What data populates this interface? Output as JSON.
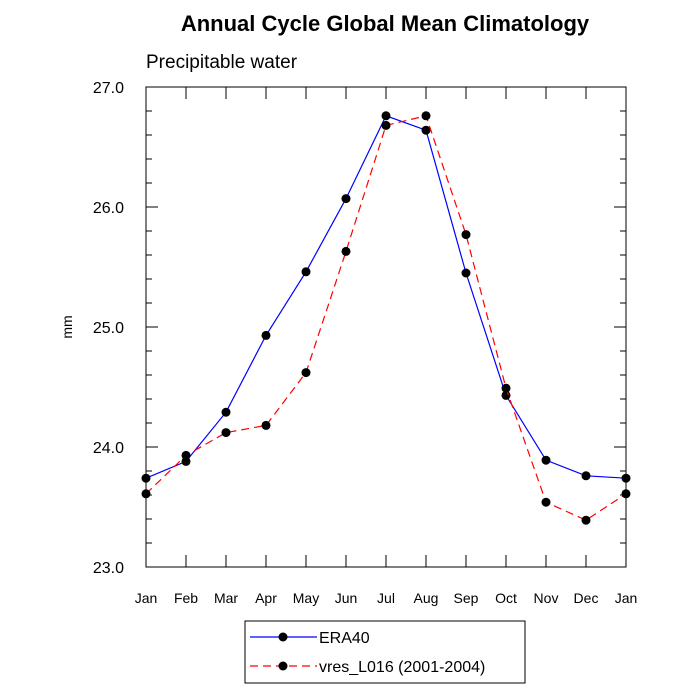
{
  "chart_data": {
    "type": "line",
    "title": "Annual Cycle Global Mean Climatology",
    "subtitle": "Precipitable water",
    "xlabel": "",
    "ylabel": "mm",
    "categories": [
      "Jan",
      "Feb",
      "Mar",
      "Apr",
      "May",
      "Jun",
      "Jul",
      "Aug",
      "Sep",
      "Oct",
      "Nov",
      "Dec",
      "Jan"
    ],
    "ylim": [
      23.0,
      27.0
    ],
    "yticks": [
      "23.0",
      "24.0",
      "25.0",
      "26.0",
      "27.0"
    ],
    "grid": false,
    "legend_position": "bottom",
    "series": [
      {
        "name": "ERA40",
        "color": "#0000ff",
        "line_style": "solid",
        "marker": "filled-circle",
        "values": [
          23.74,
          23.88,
          24.29,
          24.93,
          25.46,
          26.07,
          26.76,
          26.64,
          25.45,
          24.43,
          23.89,
          23.76,
          23.74
        ]
      },
      {
        "name": "vres_L016 (2001-2004)",
        "color": "#ff0000",
        "line_style": "dashed",
        "marker": "filled-circle",
        "values": [
          23.61,
          23.93,
          24.12,
          24.18,
          24.62,
          25.63,
          26.68,
          26.76,
          25.77,
          24.49,
          23.54,
          23.39,
          23.61
        ]
      }
    ]
  }
}
